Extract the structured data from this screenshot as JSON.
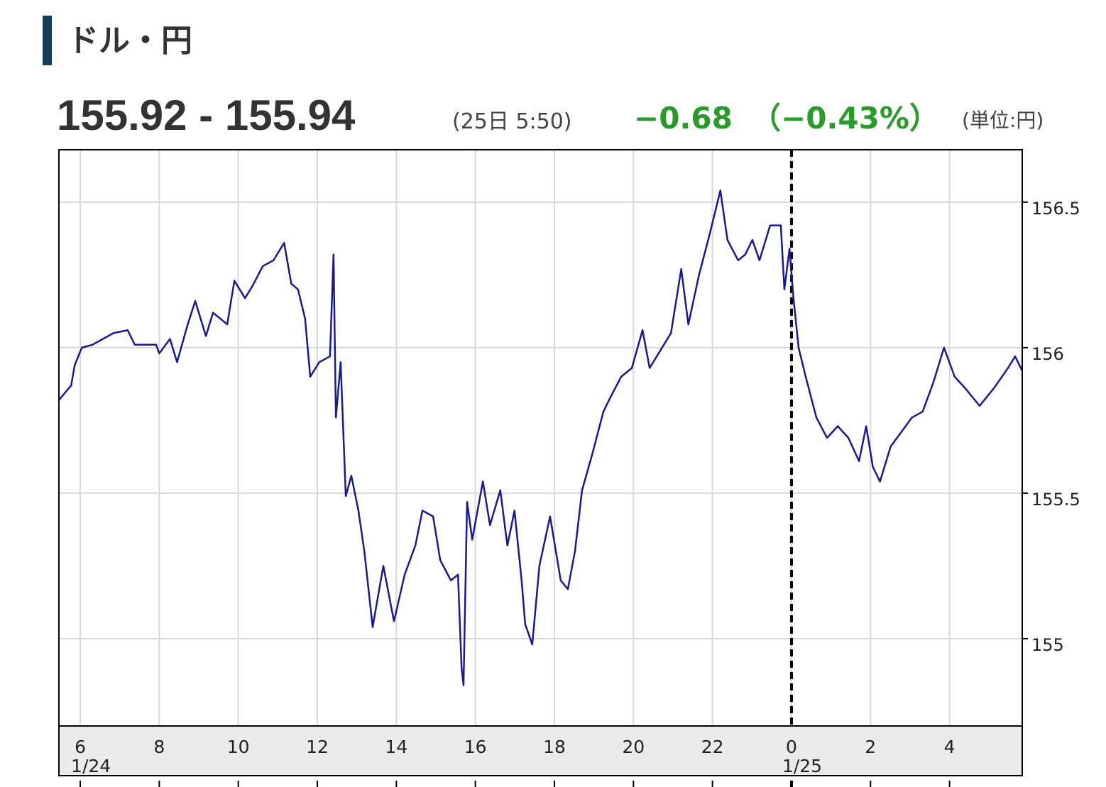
{
  "header": {
    "title": "ドル・円",
    "price": "155.92 - 155.94",
    "time": "(25日 5:50)",
    "change": "−0.68",
    "change_percent": "（−0.43%）",
    "unit": "(単位:円)"
  },
  "chart_data": {
    "type": "line",
    "x": [
      5.46,
      5.77,
      5.86,
      6.04,
      6.31,
      6.84,
      7.2,
      7.38,
      7.92,
      8.0,
      8.27,
      8.45,
      8.72,
      8.91,
      9.18,
      9.36,
      9.72,
      9.9,
      10.17,
      10.35,
      10.62,
      10.89,
      11.16,
      11.34,
      11.51,
      11.69,
      11.82,
      12.05,
      12.32,
      12.41,
      12.47,
      12.59,
      12.72,
      12.86,
      13.04,
      13.19,
      13.4,
      13.67,
      13.94,
      14.21,
      14.48,
      14.66,
      14.93,
      15.11,
      15.38,
      15.56,
      15.65,
      15.7,
      15.79,
      15.92,
      16.19,
      16.37,
      16.63,
      16.81,
      16.99,
      17.17,
      17.26,
      17.44,
      17.62,
      17.89,
      18.16,
      18.34,
      18.52,
      18.7,
      18.97,
      19.24,
      19.42,
      19.69,
      19.96,
      20.23,
      20.41,
      20.59,
      20.95,
      21.21,
      21.39,
      21.66,
      21.93,
      22.2,
      22.38,
      22.65,
      22.83,
      23.01,
      23.19,
      23.46,
      23.73,
      23.82,
      23.95,
      24.05,
      24.18,
      24.36,
      24.63,
      24.9,
      25.17,
      25.44,
      25.71,
      25.89,
      26.06,
      26.24,
      26.51,
      26.78,
      27.05,
      27.32,
      27.59,
      27.86,
      28.13,
      28.4,
      28.76,
      29.12,
      29.48,
      29.66,
      29.84
    ],
    "series": [
      {
        "color": "#1a1a8c",
        "values": [
          155.82,
          155.87,
          155.94,
          156.0,
          156.01,
          156.05,
          156.06,
          156.01,
          156.01,
          155.98,
          156.03,
          155.95,
          156.08,
          156.16,
          156.04,
          156.12,
          156.08,
          156.23,
          156.17,
          156.21,
          156.28,
          156.3,
          156.36,
          156.22,
          156.2,
          156.1,
          155.9,
          155.95,
          155.97,
          156.32,
          155.76,
          155.95,
          155.49,
          155.56,
          155.44,
          155.3,
          155.04,
          155.25,
          155.06,
          155.22,
          155.32,
          155.44,
          155.42,
          155.27,
          155.2,
          155.22,
          154.9,
          154.84,
          155.47,
          155.34,
          155.54,
          155.39,
          155.51,
          155.32,
          155.44,
          155.2,
          155.05,
          154.98,
          155.25,
          155.42,
          155.2,
          155.17,
          155.3,
          155.51,
          155.64,
          155.78,
          155.83,
          155.9,
          155.93,
          156.06,
          155.93,
          155.97,
          156.05,
          156.27,
          156.08,
          156.25,
          156.39,
          156.54,
          156.37,
          156.3,
          156.32,
          156.37,
          156.3,
          156.42,
          156.42,
          156.2,
          156.34,
          156.17,
          156.0,
          155.9,
          155.76,
          155.69,
          155.73,
          155.69,
          155.61,
          155.73,
          155.59,
          155.54,
          155.66,
          155.71,
          155.76,
          155.78,
          155.88,
          156.0,
          155.9,
          155.86,
          155.8,
          155.86,
          155.93,
          155.97,
          155.92
        ]
      }
    ],
    "xlim": [
      5.46,
      29.84
    ],
    "ylim": [
      154.7,
      156.68
    ],
    "xticks": [
      6,
      8,
      10,
      12,
      14,
      16,
      18,
      20,
      22,
      {
        "value": 24,
        "label": "0"
      },
      {
        "value": 26,
        "label": "2"
      },
      {
        "value": 28,
        "label": "4"
      }
    ],
    "yticks": [
      155,
      155.5,
      156,
      156.5
    ],
    "date_labels": [
      {
        "value": 6,
        "label": "1/24"
      },
      {
        "value": 24,
        "label": "1/25"
      }
    ],
    "day_divider": 24,
    "grid": true
  }
}
